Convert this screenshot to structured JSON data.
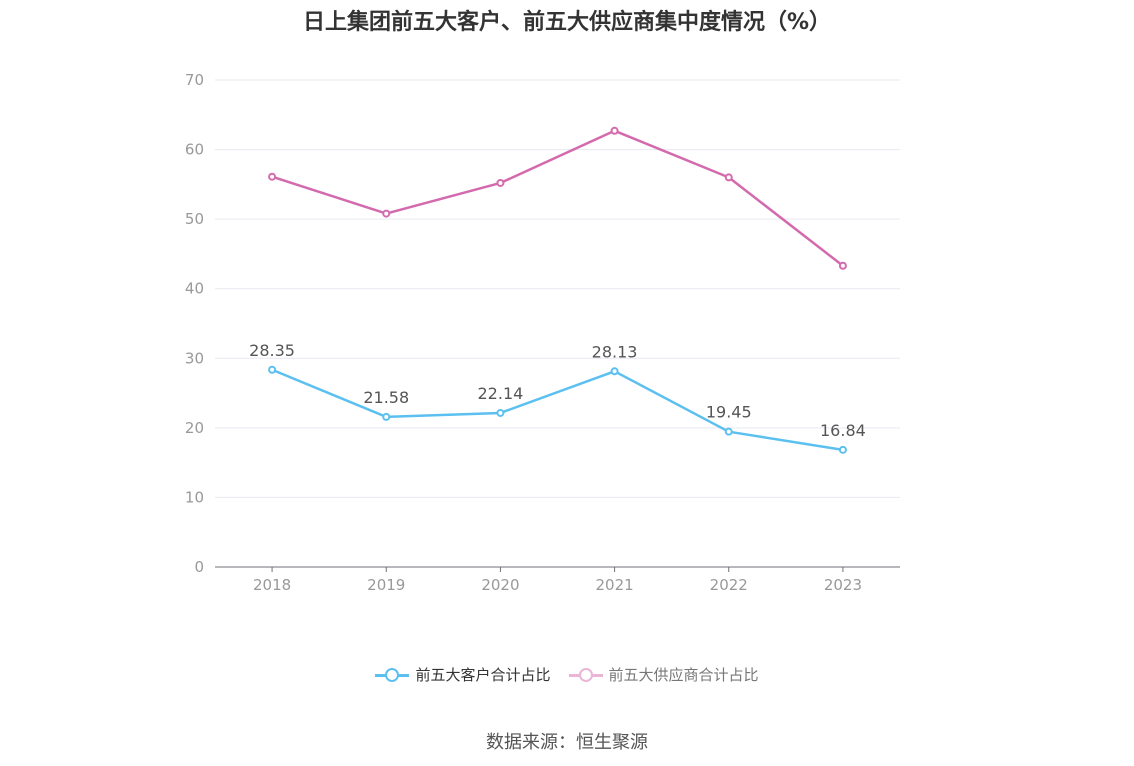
{
  "chart_data": {
    "type": "line",
    "title": "日上集团前五大客户、前五大供应商集中度情况（%）",
    "categories": [
      "2018",
      "2019",
      "2020",
      "2021",
      "2022",
      "2023"
    ],
    "ylim": [
      0,
      70
    ],
    "yticks": [
      0,
      10,
      20,
      30,
      40,
      50,
      60,
      70
    ],
    "grid": true,
    "legend_position": "bottom",
    "series": [
      {
        "name": "前五大客户合计占比",
        "color": "#5bc0f0",
        "values": [
          28.35,
          21.58,
          22.14,
          28.13,
          19.45,
          16.84
        ],
        "labels": [
          "28.35",
          "21.58",
          "22.14",
          "28.13",
          "19.45",
          "16.84"
        ],
        "show_labels": true
      },
      {
        "name": "前五大供应商合计占比",
        "color": "#d46aae",
        "values": [
          56.1,
          50.8,
          55.2,
          62.7,
          56.0,
          43.3
        ],
        "show_labels": false
      }
    ],
    "source": "数据来源：恒生聚源"
  }
}
